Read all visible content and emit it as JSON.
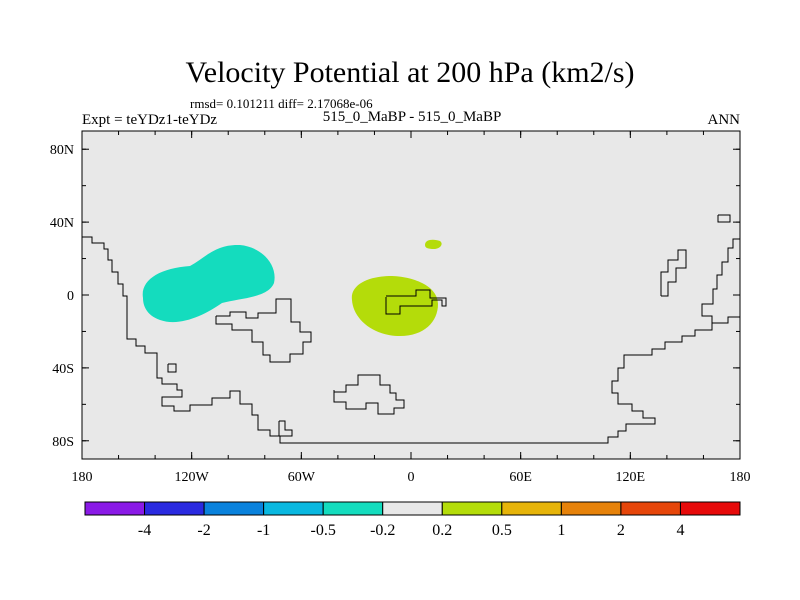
{
  "chart_data": {
    "type": "heatmap",
    "title": "Velocity Potential at 200 hPa (km2/s)",
    "stats_line": "rmsd= 0.101211 diff= 2.17068e-06",
    "left_label": "Expt = teYDz1-teYDz",
    "center_label": "515_0_MaBP - 515_0_MaBP",
    "right_label": "ANN",
    "x_axis": {
      "range": [
        -180,
        180
      ],
      "ticks": [
        -180,
        -120,
        -60,
        0,
        60,
        120,
        180
      ],
      "tick_labels": [
        "180",
        "120W",
        "60W",
        "0",
        "60E",
        "120E",
        "180"
      ]
    },
    "y_axis": {
      "range": [
        -90,
        90
      ],
      "ticks": [
        80,
        40,
        0,
        -40,
        -80
      ],
      "tick_labels": [
        "80N",
        "40N",
        "0",
        "40S",
        "80S"
      ]
    },
    "colorbar": {
      "colors": [
        "#8a1ae6",
        "#2a2ae0",
        "#0a82dc",
        "#0ab8e0",
        "#14dcbe",
        "#e8e8e8",
        "#b4dc0a",
        "#e6b40a",
        "#e6820a",
        "#e6460a",
        "#e60a0a"
      ],
      "levels": [
        "-4",
        "-2",
        "-1",
        "-0.5",
        "-0.2",
        "0.2",
        "0.5",
        "1",
        "2",
        "4"
      ]
    },
    "background_color": "#e8e8e8",
    "anomalies": [
      {
        "name": "negative-anomaly",
        "color": "#14dcbe",
        "range": "-0.5 to -0.2",
        "region": "central-east Pacific, 20N-10S"
      },
      {
        "name": "positive-anomaly",
        "color": "#b4dc0a",
        "range": "0.2 to 0.5",
        "region": "Atlantic/West Africa, 10N-20S"
      }
    ]
  }
}
